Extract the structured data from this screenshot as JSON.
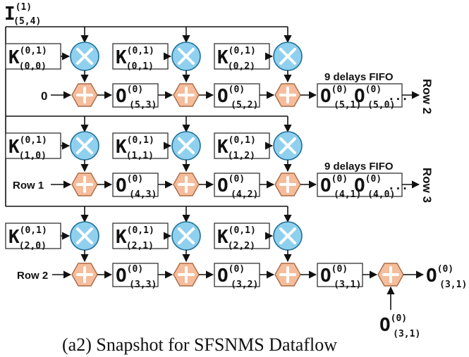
{
  "input": {
    "base": "I",
    "sup": "(1)",
    "sub": "(5,4)"
  },
  "rows": [
    {
      "kernels": [
        {
          "base": "K",
          "sup": "(0,1)",
          "sub": "(0,0)"
        },
        {
          "base": "K",
          "sup": "(0,1)",
          "sub": "(0,1)"
        },
        {
          "base": "K",
          "sup": "(0,1)",
          "sub": "(0,2)"
        }
      ],
      "start_label": "0",
      "partials": [
        {
          "base": "O",
          "sup": "(0)",
          "sub": "(5,3)"
        },
        {
          "base": "O",
          "sup": "(0)",
          "sub": "(5,2)"
        }
      ],
      "fifo_label": "9 delays FIFO",
      "fifo_items": [
        {
          "base": "O",
          "sup": "(0)",
          "sub": "(5,1)"
        },
        {
          "base": "O",
          "sup": "(0)",
          "sub": "(5,0)"
        }
      ],
      "fifo_ellipsis": "...",
      "out_label": "Row 2"
    },
    {
      "kernels": [
        {
          "base": "K",
          "sup": "(0,1)",
          "sub": "(1,0)"
        },
        {
          "base": "K",
          "sup": "(0,1)",
          "sub": "(1,1)"
        },
        {
          "base": "K",
          "sup": "(0,1)",
          "sub": "(1,2)"
        }
      ],
      "start_label": "Row 1",
      "partials": [
        {
          "base": "O",
          "sup": "(0)",
          "sub": "(4,3)"
        },
        {
          "base": "O",
          "sup": "(0)",
          "sub": "(4,2)"
        }
      ],
      "fifo_label": "9 delays FIFO",
      "fifo_items": [
        {
          "base": "O",
          "sup": "(0)",
          "sub": "(4,1)"
        },
        {
          "base": "O",
          "sup": "(0)",
          "sub": "(4,0)"
        }
      ],
      "fifo_ellipsis": "...",
      "out_label": "Row 3"
    },
    {
      "kernels": [
        {
          "base": "K",
          "sup": "(0,1)",
          "sub": "(2,0)"
        },
        {
          "base": "K",
          "sup": "(0,1)",
          "sub": "(2,1)"
        },
        {
          "base": "K",
          "sup": "(0,1)",
          "sub": "(2,2)"
        }
      ],
      "start_label": "Row 2",
      "partials": [
        {
          "base": "O",
          "sup": "(0)",
          "sub": "(3,3)"
        },
        {
          "base": "O",
          "sup": "(0)",
          "sub": "(3,2)"
        },
        {
          "base": "O",
          "sup": "(0)",
          "sub": "(3,1)"
        }
      ],
      "extra_input": {
        "base": "O",
        "sup": "(0)",
        "sub": "(3,1)"
      },
      "final_output": {
        "base": "O",
        "sup": "(0)",
        "sub": "(3,1)"
      }
    }
  ],
  "caption": "(a2) Snapshot for SFSNMS Dataflow"
}
